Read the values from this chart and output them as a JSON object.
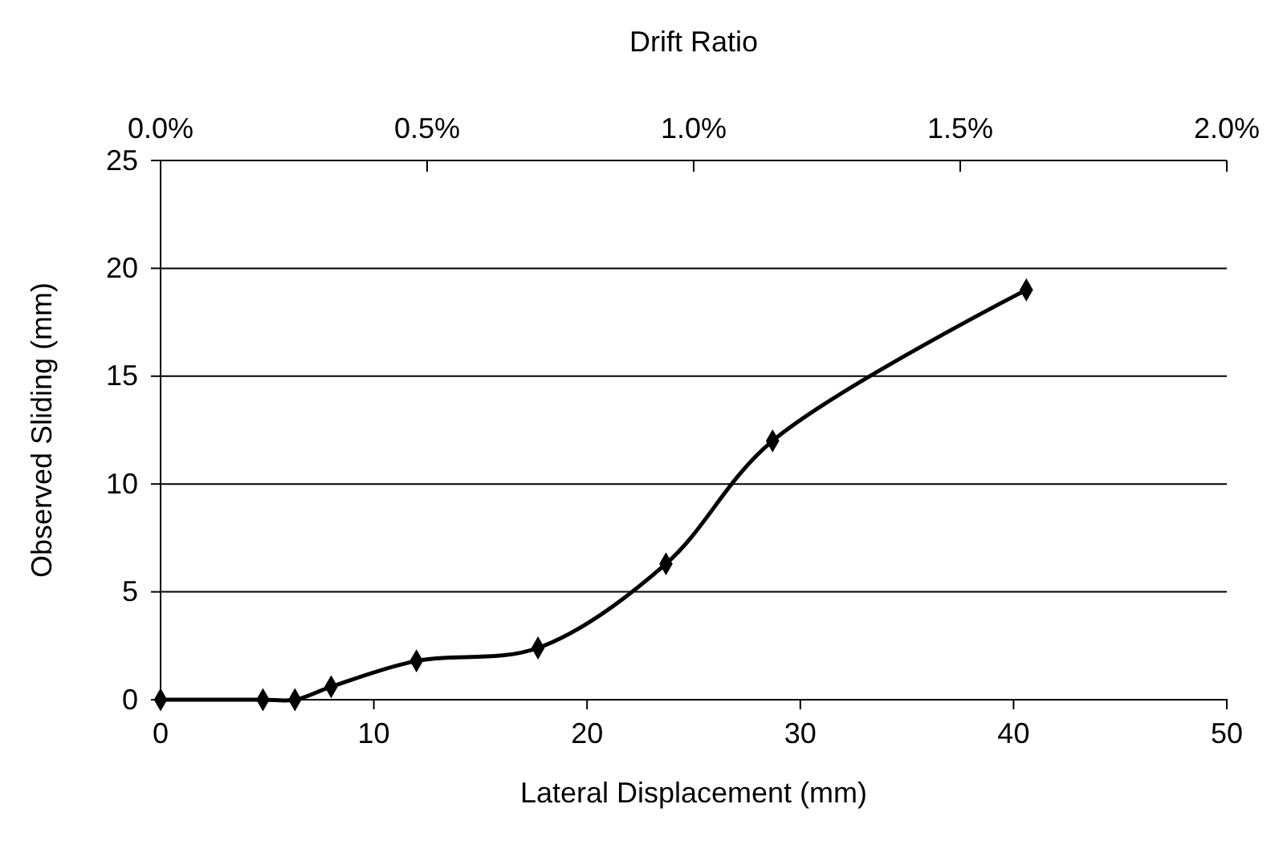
{
  "chart_data": {
    "type": "line",
    "xlabel": "Lateral Displacement (mm)",
    "ylabel": "Observed Sliding (mm)",
    "x2label": "Drift Ratio",
    "x": [
      0,
      4.8,
      6.3,
      8.0,
      12.0,
      17.7,
      23.7,
      28.7,
      40.6
    ],
    "series": [
      {
        "color": "#000000",
        "values": [
          0,
          0,
          0,
          0.6,
          1.8,
          2.4,
          6.3,
          12.0,
          19.0
        ]
      }
    ],
    "xlim": [
      0,
      50
    ],
    "xticks": [
      0,
      10,
      20,
      30,
      40,
      50
    ],
    "ylim": [
      0,
      25
    ],
    "yticks": [
      0,
      5,
      10,
      15,
      20,
      25
    ],
    "x2lim": [
      0,
      2
    ],
    "x2ticks": [
      {
        "value": 0,
        "label": "0.0%"
      },
      {
        "value": 0.5,
        "label": "0.5%"
      },
      {
        "value": 1,
        "label": "1.0%"
      },
      {
        "value": 1.5,
        "label": "1.5%"
      },
      {
        "value": 2,
        "label": "2.0%"
      }
    ],
    "grid": "y",
    "marker": "diamond",
    "line_style": "solid"
  }
}
